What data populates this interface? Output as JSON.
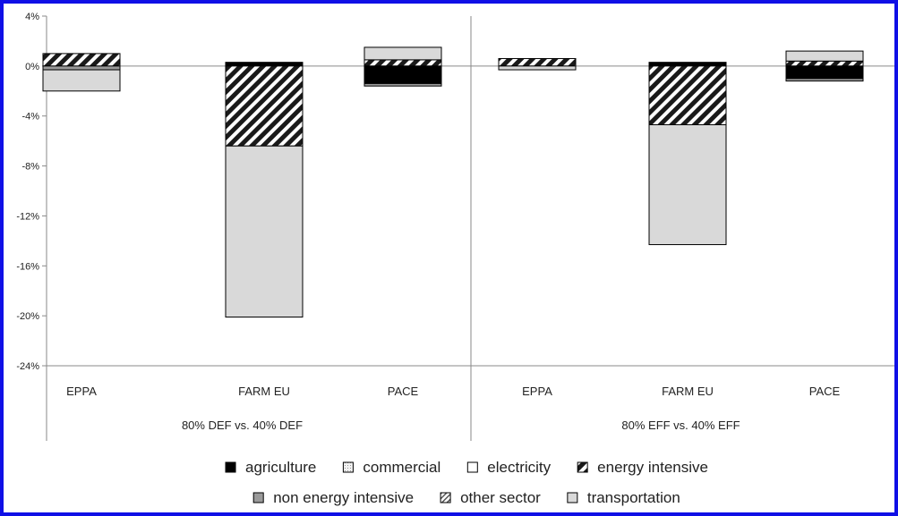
{
  "chart_data": {
    "type": "bar",
    "stacked": true,
    "title": "",
    "xlabel": "",
    "ylabel": "",
    "ylim": [
      -24,
      4
    ],
    "yticks": [
      "4%",
      "0%",
      "-4%",
      "-8%",
      "-12%",
      "-16%",
      "-20%",
      "-24%"
    ],
    "ytick_values": [
      4,
      0,
      -4,
      -8,
      -12,
      -16,
      -20,
      -24
    ],
    "grid": false,
    "legend_position": "bottom",
    "groups": [
      {
        "label": "80% DEF vs. 40% DEF",
        "categories": [
          {
            "label": "EPPA",
            "segments": [
              {
                "series": "energy intensive",
                "value": 1.0
              },
              {
                "series": "non energy intensive",
                "value": -0.3
              },
              {
                "series": "transportation",
                "value": -1.7
              }
            ]
          },
          {
            "label": "FARM EU",
            "segments": [
              {
                "series": "agriculture",
                "value": 0.3
              },
              {
                "series": "energy intensive",
                "value": -6.4
              },
              {
                "series": "transportation",
                "value": -13.7
              }
            ]
          },
          {
            "label": "PACE",
            "segments": [
              {
                "series": "energy intensive",
                "value": 0.5
              },
              {
                "series": "transportation",
                "value": 1.0
              },
              {
                "series": "agriculture",
                "value": -1.4
              },
              {
                "series": "non energy intensive",
                "value": -0.2
              }
            ]
          }
        ]
      },
      {
        "label": "80% EFF vs. 40% EFF",
        "categories": [
          {
            "label": "EPPA",
            "segments": [
              {
                "series": "energy intensive",
                "value": 0.6
              },
              {
                "series": "transportation",
                "value": -0.3
              }
            ]
          },
          {
            "label": "FARM EU",
            "segments": [
              {
                "series": "agriculture",
                "value": 0.3
              },
              {
                "series": "energy intensive",
                "value": -4.7
              },
              {
                "series": "transportation",
                "value": -9.6
              }
            ]
          },
          {
            "label": "PACE",
            "segments": [
              {
                "series": "energy intensive",
                "value": 0.4
              },
              {
                "series": "transportation",
                "value": 0.8
              },
              {
                "series": "agriculture",
                "value": -1.0
              },
              {
                "series": "non energy intensive",
                "value": -0.2
              }
            ]
          }
        ]
      }
    ],
    "series": [
      {
        "name": "agriculture",
        "color": "#000000",
        "pattern": "solid"
      },
      {
        "name": "commercial",
        "color": "#f2f2f2",
        "pattern": "dots"
      },
      {
        "name": "electricity",
        "color": "#ffffff",
        "pattern": "solid"
      },
      {
        "name": "energy intensive",
        "color": "#1a1a1a",
        "pattern": "diagonal-wide"
      },
      {
        "name": "non energy intensive",
        "color": "#9a9a9a",
        "pattern": "solid"
      },
      {
        "name": "other sector",
        "color": "#555555",
        "pattern": "diagonal-fine"
      },
      {
        "name": "transportation",
        "color": "#d9d9d9",
        "pattern": "solid"
      }
    ]
  }
}
